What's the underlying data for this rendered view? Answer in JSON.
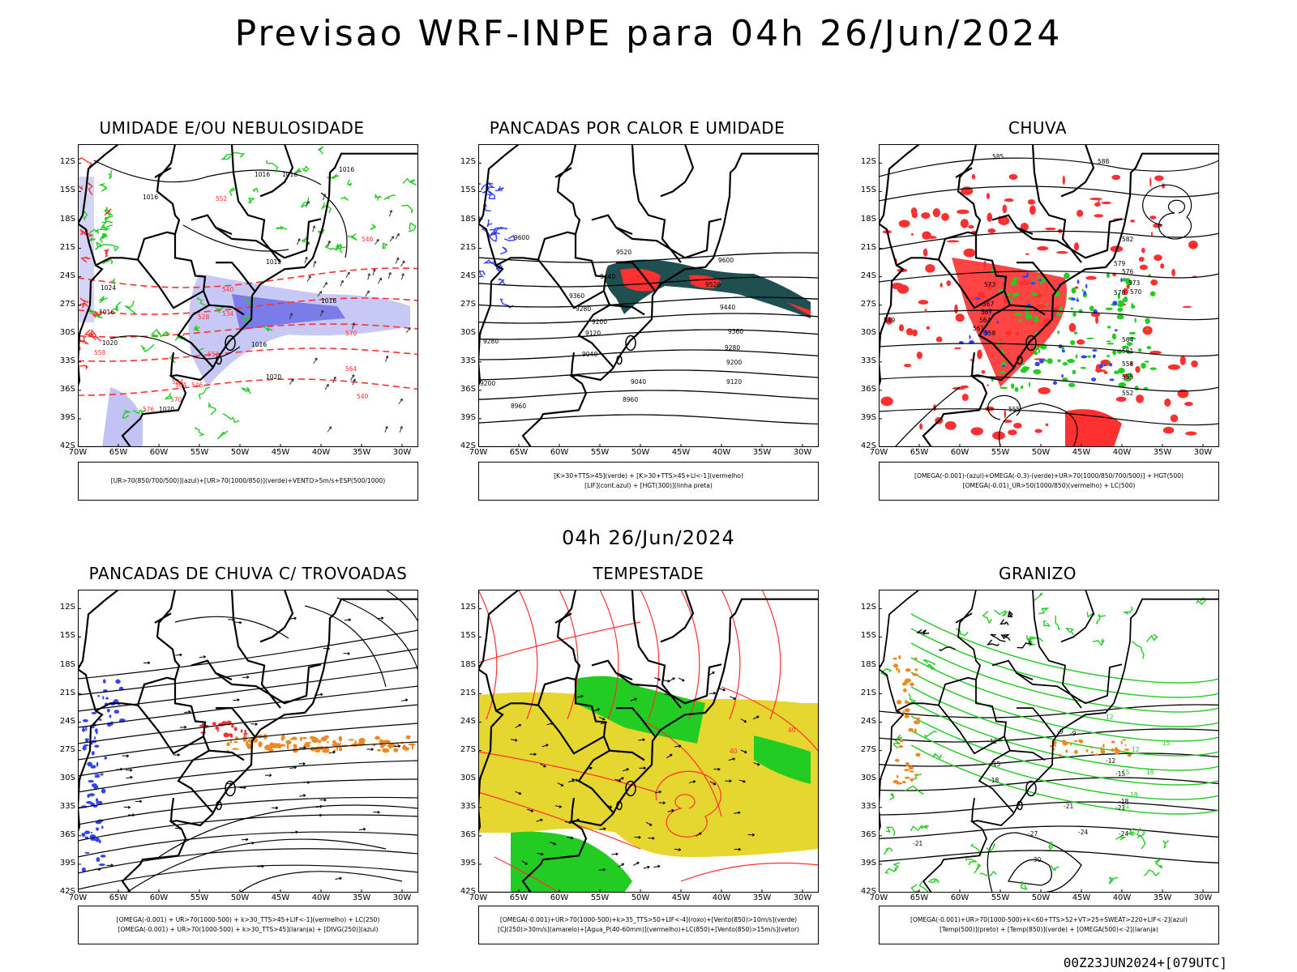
{
  "title": "Previsao WRF-INPE  para 04h 26/Jun/2024",
  "subtitle": "04h 26/Jun/2024",
  "footer": "00Z23JUN2024+[079UTC]",
  "colors": {
    "red": "#ff3030",
    "green": "#22cc22",
    "blue": "#3344ff",
    "darkteal": "#1f4f50",
    "orange": "#ee8822",
    "yellow": "#e6d630",
    "lavender": "#9a9aee",
    "black": "#000000"
  },
  "axes": {
    "lat_labels": [
      "12S",
      "15S",
      "18S",
      "21S",
      "24S",
      "27S",
      "30S",
      "33S",
      "36S",
      "39S",
      "42S"
    ],
    "lon_labels": [
      "70W",
      "65W",
      "60W",
      "55W",
      "50W",
      "45W",
      "40W",
      "35W",
      "30W"
    ]
  },
  "panels": [
    {
      "title": "UMIDADE E/OU NEBULOSIDADE",
      "legend": [
        "[UR>70(850/700/500)](azul)+[UR>70(1000/850)](verde)+VENTO>5m/s+ESP(500/1000)"
      ],
      "labels": [
        "1016",
        "1016",
        "1016",
        "1016",
        "1012",
        "1016",
        "1020",
        "1024",
        "1020",
        "1016",
        "1016",
        "1020",
        "570",
        "576",
        "564",
        "558",
        "552",
        "546",
        "540",
        "534",
        "528",
        "570",
        "564",
        "552",
        "546",
        "540",
        "534"
      ]
    },
    {
      "title": "PANCADAS POR CALOR E UMIDADE",
      "legend": [
        "[K>30+TTS>45](verde) + [K>30+TTS>45+LI<-1](vermelho)",
        "[LIF](cont.azul) + [HGT(300)](linha preta)"
      ],
      "labels": [
        "9600",
        "9520",
        "9440",
        "9360",
        "9280",
        "9200",
        "9120",
        "9040",
        "8960",
        "9600",
        "9520",
        "9440",
        "9360",
        "9280",
        "9200",
        "9120",
        "9040",
        "8960",
        "9280",
        "9200"
      ]
    },
    {
      "title": "CHUVA",
      "legend": [
        "[OMEGA(-0.001)-(azul)+OMEGA(-0.3)-(verde)+UR>70(1000/850/700/500)] + HGT(500)",
        "[OMEGA(-0.01)_UR>50(1000/850)(vermelho) + LC(500)"
      ],
      "labels": [
        "588",
        "585",
        "582",
        "579",
        "576",
        "573",
        "570",
        "567",
        "564",
        "561",
        "558",
        "555",
        "552",
        "549",
        "570",
        "573",
        "567",
        "564",
        "561",
        "558",
        "555"
      ]
    },
    {
      "title": "PANCADAS DE CHUVA C/ TROVOADAS",
      "legend": [
        "[OMEGA(-0.001) + UR>70(1000-500) + k>30_TTS>45+LIF<-1](vermelho) + LC(250)",
        "[OMEGA(-0.001) + UR>70(1000-500) + k>30_TTS>45](laranja) + [DIVG(250)](azul)"
      ],
      "labels": []
    },
    {
      "title": "TEMPESTADE",
      "legend": [
        "[OMEGA(-0.001)+UR>70(1000-500)+k>35_TTS>50+LIF<-4](roxo)+[Vento(850)>10m/s](verde)",
        "[CJ(250)>30m/s](amarelo)+[Agua_P(40-60mm)](vermelho)+LC(850)+[Vento(850)>15m/s](vetor)"
      ],
      "labels": [
        "40",
        "40"
      ]
    },
    {
      "title": "GRANIZO",
      "legend": [
        "[OMEGA(-0.001)+UR>70(1000-500)+k<60+TTS>52+VT>25+SWEAT>220+LIF<-2](azul)",
        "[Temp(500)](preto) + [Temp(850)](verde) + [OMEGA(500)<-2](laranja)"
      ],
      "labels": [
        "-9",
        "-12",
        "-15",
        "-18",
        "-21",
        "-24",
        "-27",
        "-30",
        "-21",
        "-9",
        "-12",
        "-15",
        "-18",
        "-21",
        "-24",
        "12",
        "15",
        "18",
        "21",
        "12",
        "15",
        "18"
      ]
    }
  ],
  "chart_data": [
    {
      "type": "map",
      "title": "UMIDADE E/OU NEBULOSIDADE",
      "xlim": [
        -70,
        -28
      ],
      "ylim": [
        -42,
        -10
      ],
      "series": [
        {
          "name": "UR>70(850/700/500)",
          "color": "azul"
        },
        {
          "name": "UR>70(1000/850)",
          "color": "verde"
        },
        {
          "name": "ESP(500/1000)",
          "color": "vermelho",
          "values": [
            570,
            564,
            558,
            552,
            546,
            540,
            534,
            528
          ]
        },
        {
          "name": "pressure",
          "values": [
            1012,
            1016,
            1020,
            1024
          ]
        }
      ]
    },
    {
      "type": "map",
      "title": "PANCADAS POR CALOR E UMIDADE",
      "xlim": [
        -70,
        -28
      ],
      "ylim": [
        -42,
        -10
      ],
      "series": [
        {
          "name": "HGT(300)",
          "values": [
            9600,
            9520,
            9440,
            9360,
            9280,
            9200,
            9120,
            9040,
            8960
          ]
        }
      ]
    },
    {
      "type": "map",
      "title": "CHUVA",
      "xlim": [
        -70,
        -28
      ],
      "ylim": [
        -42,
        -10
      ],
      "series": [
        {
          "name": "HGT(500)",
          "values": [
            588,
            585,
            582,
            579,
            576,
            573,
            570,
            567,
            564,
            561,
            558,
            555,
            552,
            549
          ]
        }
      ]
    },
    {
      "type": "map",
      "title": "PANCADAS DE CHUVA C/ TROVOADAS",
      "xlim": [
        -70,
        -28
      ],
      "ylim": [
        -42,
        -10
      ],
      "series": []
    },
    {
      "type": "map",
      "title": "TEMPESTADE",
      "xlim": [
        -70,
        -28
      ],
      "ylim": [
        -42,
        -10
      ],
      "series": [
        {
          "name": "LC(850)",
          "values": [
            40
          ]
        }
      ]
    },
    {
      "type": "map",
      "title": "GRANIZO",
      "xlim": [
        -70,
        -28
      ],
      "ylim": [
        -42,
        -10
      ],
      "series": [
        {
          "name": "Temp(500)",
          "values": [
            -9,
            -12,
            -15,
            -18,
            -21,
            -24,
            -27,
            -30
          ]
        },
        {
          "name": "Temp(850)",
          "values": [
            12,
            15,
            18,
            21
          ]
        }
      ]
    }
  ]
}
